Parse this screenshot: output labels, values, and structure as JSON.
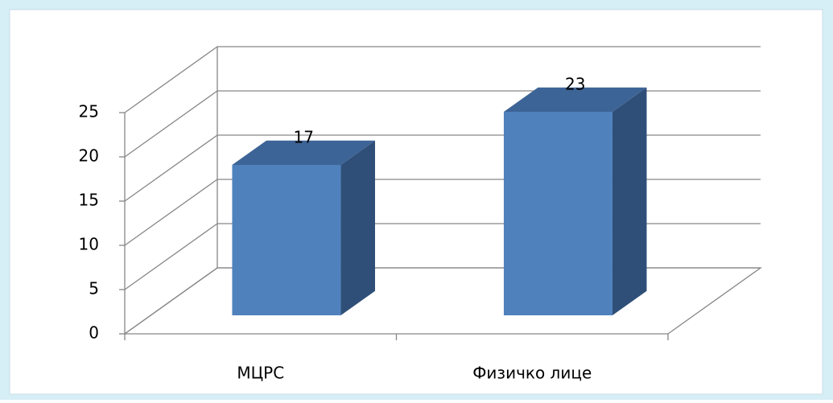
{
  "chart_data": {
    "type": "bar",
    "categories": [
      "МЦРС",
      "Физичко лице"
    ],
    "values": [
      17,
      23
    ],
    "color": "#4f81bd",
    "ylim": [
      0,
      25
    ],
    "yticks": [
      0,
      5,
      10,
      15,
      20,
      25
    ],
    "grid": true
  }
}
